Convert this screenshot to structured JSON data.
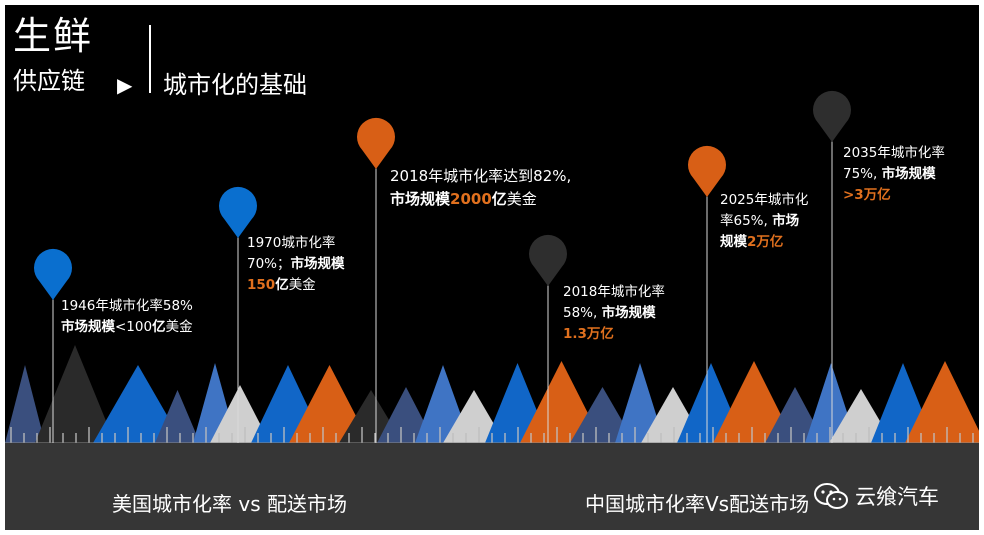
{
  "header": {
    "title": "生鲜",
    "subtitle": "供应链",
    "arrow": "▶",
    "right_title": "城市化的基础"
  },
  "colors": {
    "blue": "#0a6fcf",
    "orange": "#d85f16",
    "gray": "#2e2e2e",
    "background": "#000000",
    "ground": "#363636",
    "highlight": "#e0701e"
  },
  "markers": [
    {
      "id": "us-1946",
      "color": "blue",
      "region": "usa",
      "lines": [
        {
          "parts": [
            {
              "t": "1946年城市化率58%"
            }
          ]
        },
        {
          "parts": [
            {
              "t": "市场规模",
              "b": true
            },
            {
              "t": "<100"
            },
            {
              "t": "亿",
              "b": true
            },
            {
              "t": "美金"
            }
          ]
        }
      ]
    },
    {
      "id": "us-1970",
      "color": "blue",
      "region": "usa",
      "lines": [
        {
          "parts": [
            {
              "t": "1970城市化率"
            }
          ]
        },
        {
          "parts": [
            {
              "t": "70%；"
            },
            {
              "t": "市场规模",
              "b": true
            }
          ]
        },
        {
          "parts": [
            {
              "t": "150",
              "hl": true
            },
            {
              "t": "亿",
              "b": true
            },
            {
              "t": "美金"
            }
          ]
        }
      ]
    },
    {
      "id": "us-2018",
      "color": "orange",
      "region": "usa",
      "lines": [
        {
          "parts": [
            {
              "t": "2018年城市化率达到82%,"
            }
          ]
        },
        {
          "parts": [
            {
              "t": "市场规模",
              "b": true
            },
            {
              "t": "2000",
              "hl": true
            },
            {
              "t": "亿",
              "b": true
            },
            {
              "t": "美金"
            }
          ]
        }
      ]
    },
    {
      "id": "cn-2018",
      "color": "gray",
      "region": "china",
      "lines": [
        {
          "parts": [
            {
              "t": "2018年城市化率"
            }
          ]
        },
        {
          "parts": [
            {
              "t": "58%, "
            },
            {
              "t": "市场规模",
              "b": true
            }
          ]
        },
        {
          "parts": [
            {
              "t": "1.3万亿",
              "hl": true
            }
          ]
        }
      ]
    },
    {
      "id": "cn-2025",
      "color": "orange",
      "region": "china",
      "lines": [
        {
          "parts": [
            {
              "t": "2025年城市化"
            }
          ]
        },
        {
          "parts": [
            {
              "t": "率65%, "
            },
            {
              "t": "市场",
              "b": true
            }
          ]
        },
        {
          "parts": [
            {
              "t": "规模",
              "b": true
            },
            {
              "t": "2万亿",
              "hl": true
            }
          ]
        }
      ]
    },
    {
      "id": "cn-2035",
      "color": "gray",
      "region": "china",
      "lines": [
        {
          "parts": [
            {
              "t": "2035年城市化率"
            }
          ]
        },
        {
          "parts": [
            {
              "t": "75%, "
            },
            {
              "t": "市场规模",
              "b": true
            }
          ]
        },
        {
          "parts": [
            {
              "t": ">3万亿",
              "hl": true
            }
          ]
        }
      ]
    }
  ],
  "bottom": {
    "left_label": "美国城市化率 vs 配送市场",
    "right_label": "中国城市化率Vs配送市场"
  },
  "watermark": {
    "text": "云飨汽车",
    "icon": "wechat-icon"
  }
}
